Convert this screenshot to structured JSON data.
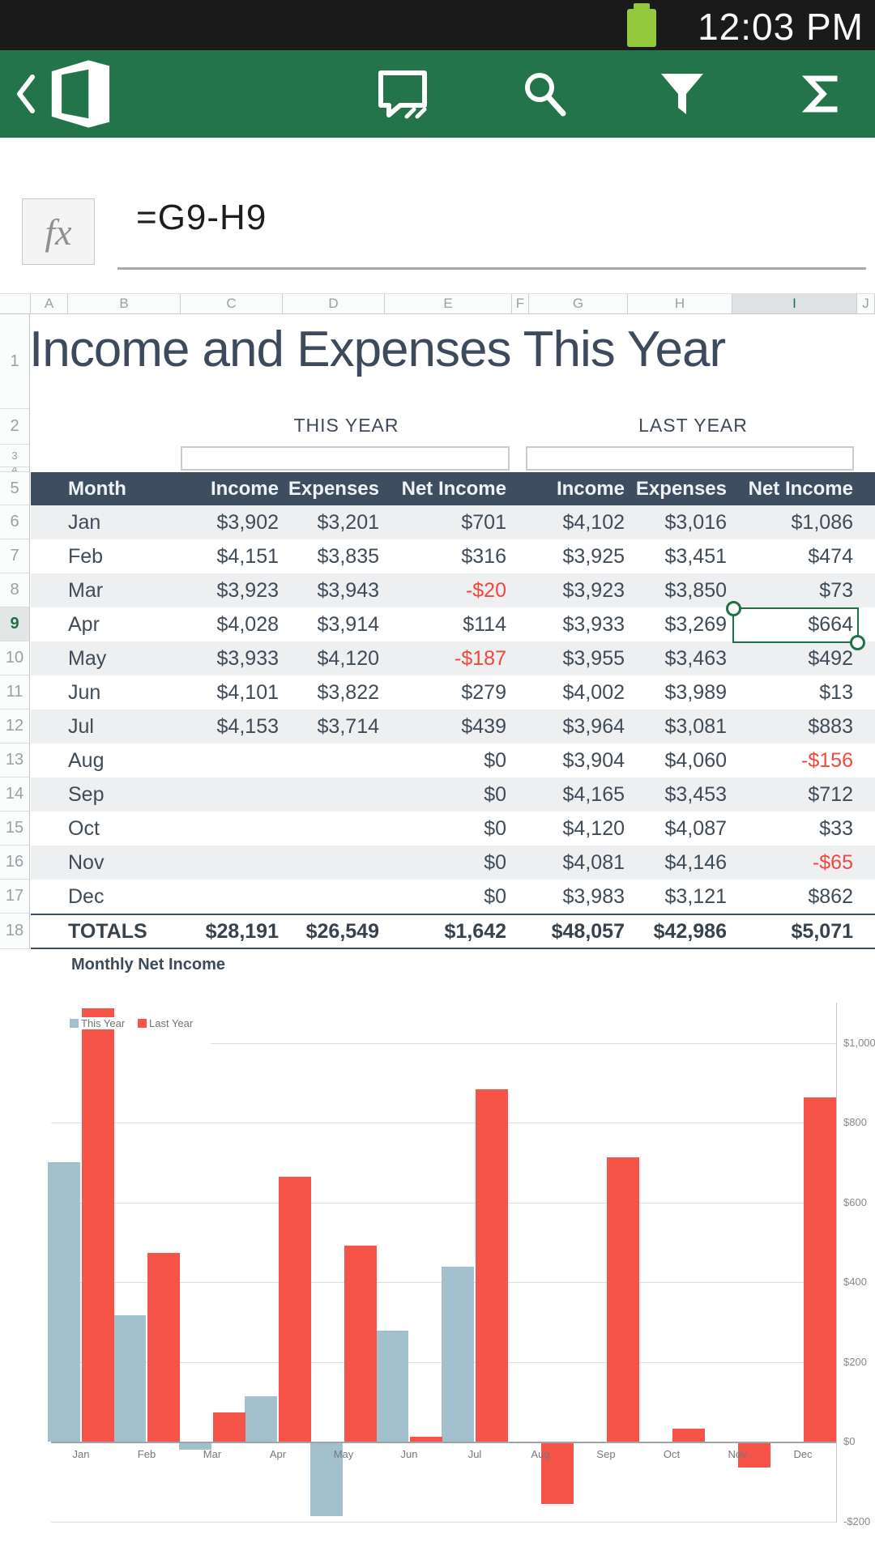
{
  "status_bar": {
    "time": "12:03 PM"
  },
  "toolbar": {
    "items": [
      "back",
      "office-logo",
      "comment",
      "search",
      "filter",
      "autosum"
    ]
  },
  "formula_bar": {
    "fx_label": "fx",
    "formula": "=G9-H9"
  },
  "grid": {
    "column_letters": [
      "A",
      "B",
      "C",
      "D",
      "E",
      "F",
      "G",
      "H",
      "I",
      "J"
    ],
    "visible_rows": 40,
    "selected_column": "I",
    "selected_row": 9,
    "selected_cell": "I9"
  },
  "sheet": {
    "title": "Income and Expenses This Year",
    "group_headers": [
      "THIS YEAR",
      "LAST YEAR"
    ],
    "table": {
      "columns": [
        "Month",
        "Income",
        "Expenses",
        "Net Income",
        "Income",
        "Expenses",
        "Net Income"
      ],
      "rows": [
        [
          "Jan",
          "$3,902",
          "$3,201",
          "$701",
          "$4,102",
          "$3,016",
          "$1,086"
        ],
        [
          "Feb",
          "$4,151",
          "$3,835",
          "$316",
          "$3,925",
          "$3,451",
          "$474"
        ],
        [
          "Mar",
          "$3,923",
          "$3,943",
          "-$20",
          "$3,923",
          "$3,850",
          "$73"
        ],
        [
          "Apr",
          "$4,028",
          "$3,914",
          "$114",
          "$3,933",
          "$3,269",
          "$664"
        ],
        [
          "May",
          "$3,933",
          "$4,120",
          "-$187",
          "$3,955",
          "$3,463",
          "$492"
        ],
        [
          "Jun",
          "$4,101",
          "$3,822",
          "$279",
          "$4,002",
          "$3,989",
          "$13"
        ],
        [
          "Jul",
          "$4,153",
          "$3,714",
          "$439",
          "$3,964",
          "$3,081",
          "$883"
        ],
        [
          "Aug",
          "",
          "",
          "$0",
          "$3,904",
          "$4,060",
          "-$156"
        ],
        [
          "Sep",
          "",
          "",
          "$0",
          "$4,165",
          "$3,453",
          "$712"
        ],
        [
          "Oct",
          "",
          "",
          "$0",
          "$4,120",
          "$4,087",
          "$33"
        ],
        [
          "Nov",
          "",
          "",
          "$0",
          "$4,081",
          "$4,146",
          "-$65"
        ],
        [
          "Dec",
          "",
          "",
          "$0",
          "$3,983",
          "$3,121",
          "$862"
        ]
      ],
      "totals": [
        "TOTALS",
        "$28,191",
        "$26,549",
        "$1,642",
        "$48,057",
        "$42,986",
        "$5,071"
      ]
    },
    "selected_cell_value": "$664"
  },
  "chart_data": {
    "type": "bar",
    "title": "Monthly Net Income",
    "categories": [
      "Jan",
      "Feb",
      "Mar",
      "Apr",
      "May",
      "Jun",
      "Jul",
      "Aug",
      "Sep",
      "Oct",
      "Nov",
      "Dec"
    ],
    "series": [
      {
        "name": "This Year",
        "color": "#a3c0cd",
        "values": [
          701,
          316,
          -20,
          114,
          -187,
          279,
          439,
          0,
          0,
          0,
          0,
          0
        ]
      },
      {
        "name": "Last Year",
        "color": "#f65349",
        "values": [
          1086,
          474,
          73,
          664,
          492,
          13,
          883,
          -156,
          712,
          33,
          -65,
          862
        ]
      }
    ],
    "y_axis": {
      "side": "right",
      "ticks": [
        {
          "label": "$1,000",
          "value": 1000
        },
        {
          "label": "$800",
          "value": 800
        },
        {
          "label": "$600",
          "value": 600
        },
        {
          "label": "$400",
          "value": 400
        },
        {
          "label": "$200",
          "value": 200
        },
        {
          "label": "$0",
          "value": 0
        },
        {
          "label": "-$200",
          "value": -200
        }
      ]
    },
    "ylim": [
      -240,
      1120
    ],
    "legend_position": "top-left",
    "gridlines": true
  },
  "colors": {
    "accent_green": "#1f7145",
    "toolbar_green": "#23744a",
    "header_band": "#3e4d5f",
    "negative_red": "#f4473c",
    "zebra_gray": "#edeff1",
    "battery_green": "#94c83d",
    "series_this_year": "#a3c0cd",
    "series_last_year": "#f65349"
  }
}
